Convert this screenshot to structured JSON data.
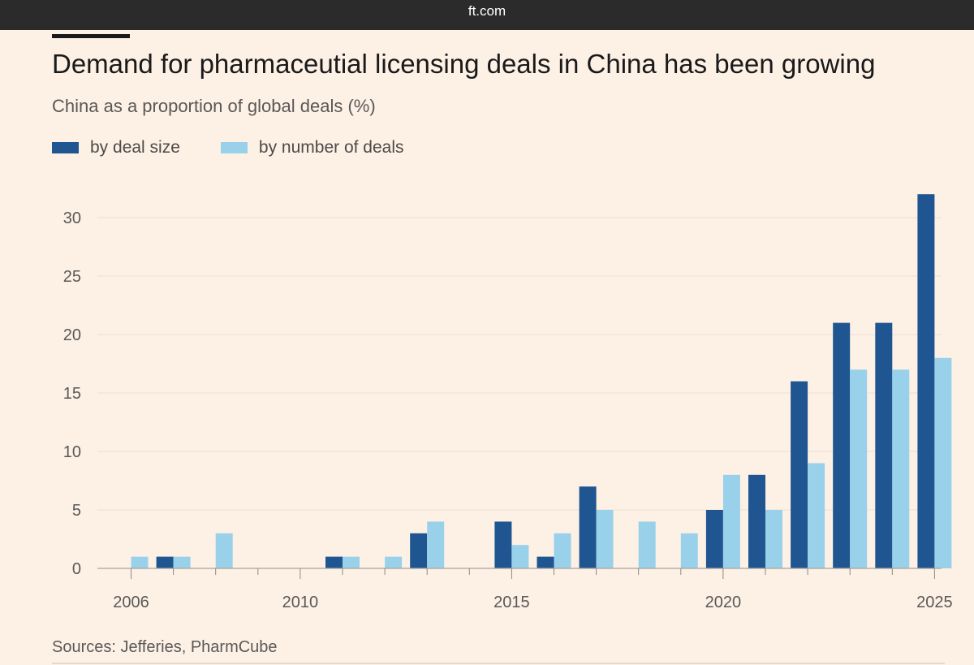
{
  "browser": {
    "url": "ft.com"
  },
  "colors": {
    "deal_size": "#1f5590",
    "num_deals": "#9ad1ea",
    "background": "#fdf1e6"
  },
  "chart_data": {
    "type": "bar",
    "title": "Demand for pharmaceutial licensing deals in China has been growing",
    "subtitle": "China as a proportion of global deals (%)",
    "categories": [
      2006,
      2007,
      2008,
      2009,
      2010,
      2011,
      2012,
      2013,
      2014,
      2015,
      2016,
      2017,
      2018,
      2019,
      2020,
      2021,
      2022,
      2023,
      2024,
      2025
    ],
    "series": [
      {
        "name": "by deal size",
        "values": [
          0,
          1,
          0,
          0,
          0,
          1,
          0,
          3,
          0,
          4,
          1,
          7,
          0,
          0,
          5,
          8,
          16,
          21,
          21,
          32
        ]
      },
      {
        "name": "by number of deals",
        "values": [
          1,
          1,
          3,
          0,
          0,
          1,
          1,
          4,
          0,
          2,
          3,
          5,
          4,
          3,
          8,
          5,
          9,
          17,
          17,
          18
        ]
      }
    ],
    "x_tick_labels": [
      "2006",
      "2010",
      "2015",
      "2020",
      "2025"
    ],
    "y_tick_labels": [
      "0",
      "5",
      "10",
      "15",
      "20",
      "25",
      "30"
    ],
    "ylim": [
      0,
      32
    ],
    "grid": true,
    "legend_position": "top-left",
    "source": "Sources: Jefferies, PharmCube"
  }
}
